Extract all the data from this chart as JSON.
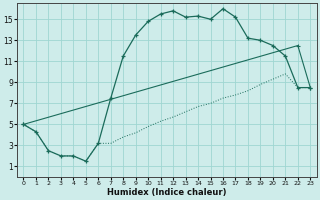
{
  "xlabel": "Humidex (Indice chaleur)",
  "bg_color": "#ceecea",
  "grid_color": "#9fd6d2",
  "line_color": "#1a6b5a",
  "xlim": [
    -0.5,
    23.5
  ],
  "ylim": [
    0,
    16.5
  ],
  "xticks": [
    0,
    1,
    2,
    3,
    4,
    5,
    6,
    7,
    8,
    9,
    10,
    11,
    12,
    13,
    14,
    15,
    16,
    17,
    18,
    19,
    20,
    21,
    22,
    23
  ],
  "yticks": [
    1,
    3,
    5,
    7,
    9,
    11,
    13,
    15
  ],
  "curve1_x": [
    0,
    1,
    2,
    3,
    4,
    5,
    6,
    7,
    8,
    9,
    10,
    11,
    12,
    13,
    14,
    15,
    16,
    17,
    18,
    19,
    20,
    21,
    22,
    23
  ],
  "curve1_y": [
    5,
    4.3,
    2.5,
    2.0,
    2.0,
    1.5,
    3.2,
    7.5,
    11.5,
    13.5,
    14.8,
    15.5,
    15.8,
    15.2,
    15.3,
    15.0,
    16.0,
    15.2,
    13.2,
    13.0,
    12.5,
    11.5,
    8.5,
    8.5
  ],
  "curve2_x": [
    0,
    1,
    2,
    3,
    4,
    5,
    6,
    7,
    8,
    9,
    10,
    11,
    12,
    13,
    14,
    15,
    16,
    17,
    18,
    19,
    20,
    21,
    22,
    23
  ],
  "curve2_y": [
    5,
    4.3,
    2.5,
    2.0,
    2.0,
    1.5,
    3.2,
    3.2,
    3.8,
    4.2,
    4.8,
    5.3,
    5.7,
    6.2,
    6.7,
    7.0,
    7.5,
    7.8,
    8.2,
    8.8,
    9.3,
    9.8,
    8.5,
    8.5
  ],
  "curve3_x": [
    0,
    22,
    23
  ],
  "curve3_y": [
    5,
    12.5,
    8.5
  ]
}
